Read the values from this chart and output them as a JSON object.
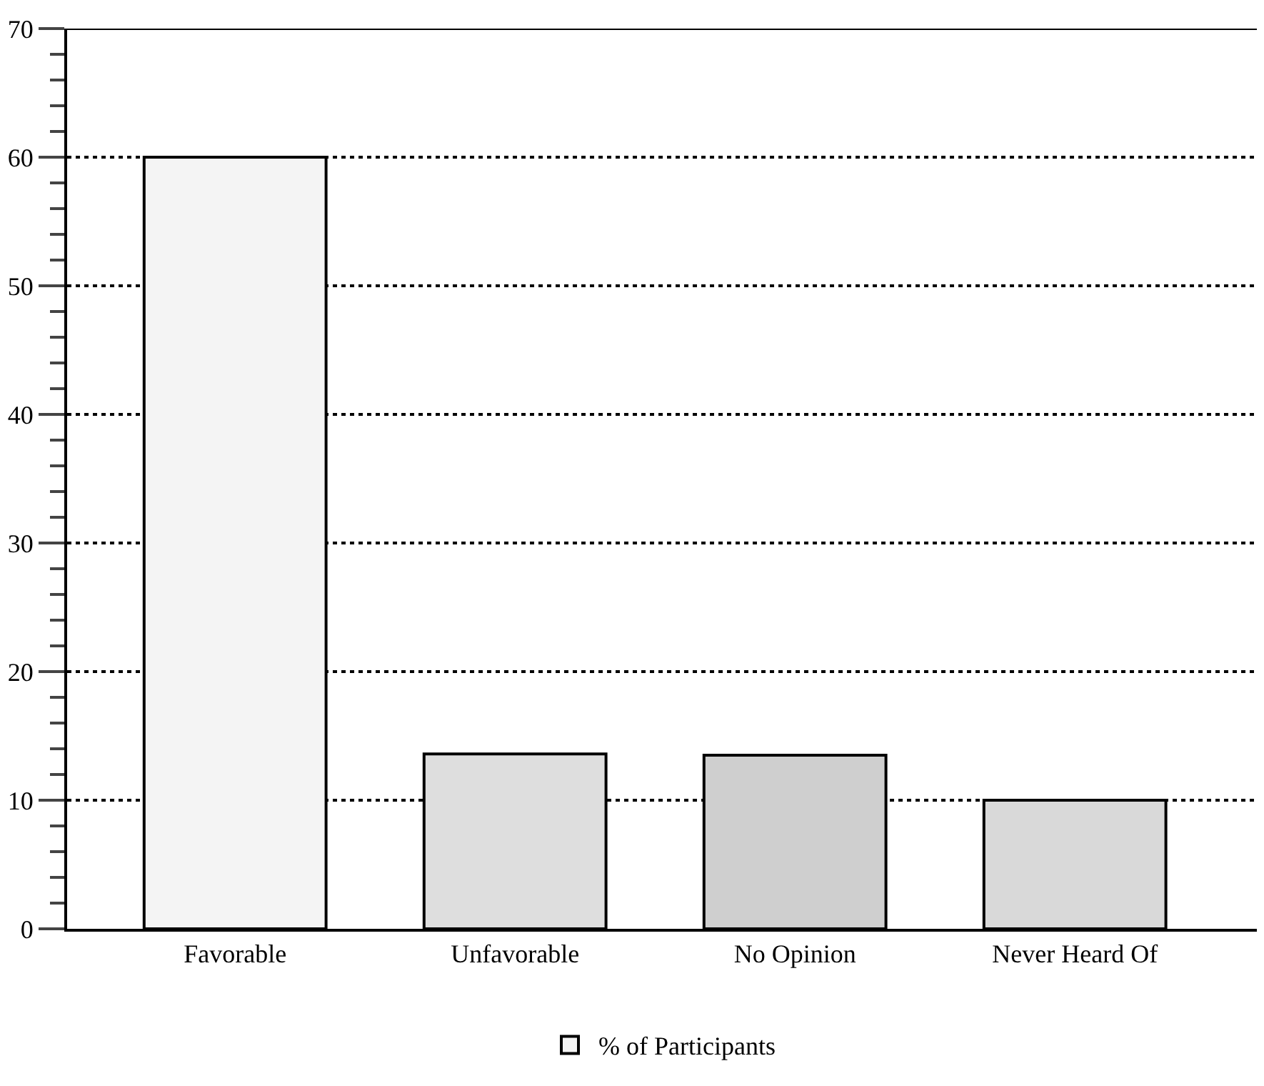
{
  "chart_data": {
    "type": "bar",
    "categories": [
      "Favorable",
      "Unfavorable",
      "No Opinion",
      "Never Heard Of"
    ],
    "series": [
      {
        "name": "% of Participants",
        "colors": [
          "#f4f4f4",
          "#dedede",
          "#cfcfcf",
          "#d9d9d9"
        ],
        "values": [
          60,
          13.6,
          13.5,
          10
        ]
      }
    ],
    "ylim": [
      0,
      70
    ],
    "yticks": [
      0,
      10,
      20,
      30,
      40,
      50,
      60,
      70
    ],
    "grid": "y",
    "legend": "bottom"
  }
}
